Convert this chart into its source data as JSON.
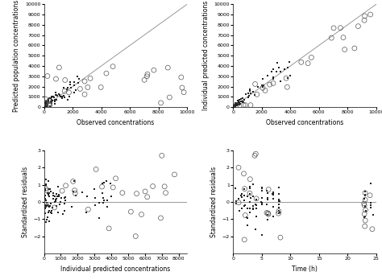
{
  "plots": [
    {
      "xlabel": "Observed concentrations",
      "ylabel": "Predicted population concentrations",
      "xlim": [
        0,
        10000
      ],
      "ylim": [
        0,
        10000
      ],
      "xticks": [
        0,
        2000,
        4000,
        6000,
        8000,
        10000
      ],
      "yticks": [
        0,
        1000,
        2000,
        3000,
        4000,
        5000,
        6000,
        7000,
        8000,
        9000,
        10000
      ],
      "identity_line": true,
      "hline": false
    },
    {
      "xlabel": "Observed concentrations",
      "ylabel": "Individual predicted concentrations",
      "xlim": [
        0,
        10000
      ],
      "ylim": [
        0,
        10000
      ],
      "xticks": [
        0,
        2000,
        4000,
        6000,
        8000,
        10000
      ],
      "yticks": [
        0,
        1000,
        2000,
        3000,
        4000,
        5000,
        6000,
        7000,
        8000,
        9000,
        10000
      ],
      "identity_line": true,
      "hline": false
    },
    {
      "xlabel": "Individual predicted concentrations",
      "ylabel": "Standardized residuals",
      "xlim": [
        0,
        8500
      ],
      "ylim": [
        -3,
        3
      ],
      "xticks": [
        0,
        1000,
        2000,
        3000,
        4000,
        5000,
        6000,
        7000,
        8000
      ],
      "yticks": [
        -2,
        -1,
        0,
        1,
        2,
        3
      ],
      "identity_line": false,
      "hline": true
    },
    {
      "xlabel": "Time (h)",
      "ylabel": "Standardized residuals",
      "xlim": [
        0,
        25
      ],
      "ylim": [
        -3,
        3
      ],
      "xticks": [
        0,
        5,
        10,
        15,
        20,
        25
      ],
      "yticks": [
        -2,
        -1,
        0,
        1,
        2,
        3
      ],
      "identity_line": false,
      "hline": true
    }
  ],
  "small_dot_color": "#222222",
  "large_circle_edgecolor": "#555555",
  "line_color": "#888888",
  "small_dot_size": 3,
  "large_circle_size": 18,
  "small_marker": "s",
  "font_size": 5,
  "axis_label_size": 5.5,
  "tick_label_size": 4.5,
  "linewidth": 0.6,
  "circle_linewidth": 0.5
}
